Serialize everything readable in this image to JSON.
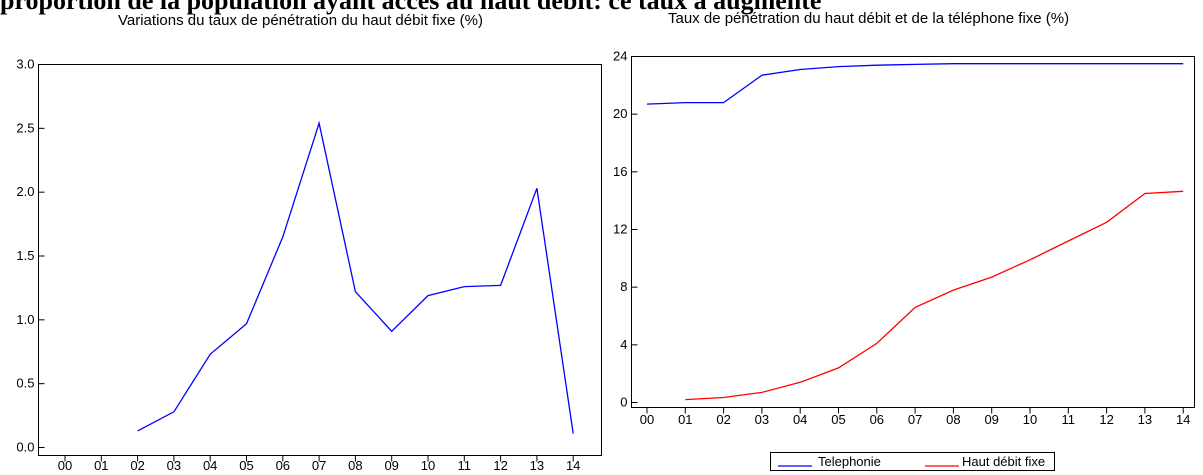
{
  "heading": "proportion de la population ayant accès au haut débit: ce taux a augmenté",
  "chart_data": [
    {
      "type": "line",
      "title": "Variations du taux de pénétration du haut débit fixe (%)",
      "x": [
        "00",
        "01",
        "02",
        "03",
        "04",
        "05",
        "06",
        "07",
        "08",
        "09",
        "10",
        "11",
        "12",
        "13",
        "14"
      ],
      "y_ticks": [
        "0.0",
        "0.5",
        "1.0",
        "1.5",
        "2.0",
        "2.5",
        "3.0"
      ],
      "ylim": [
        0,
        3.0
      ],
      "grid": false,
      "series": [
        {
          "color": "#0000ff",
          "values": [
            null,
            null,
            0.13,
            0.28,
            0.73,
            0.97,
            1.65,
            2.54,
            1.22,
            0.91,
            1.19,
            1.26,
            1.27,
            2.03,
            0.11
          ]
        }
      ]
    },
    {
      "type": "line",
      "title": "Taux de pénétration du haut débit et de la téléphone fixe (%)",
      "x": [
        "00",
        "01",
        "02",
        "03",
        "04",
        "05",
        "06",
        "07",
        "08",
        "09",
        "10",
        "11",
        "12",
        "13",
        "14"
      ],
      "y_ticks": [
        "0",
        "4",
        "8",
        "12",
        "16",
        "20",
        "24"
      ],
      "ylim": [
        0,
        24
      ],
      "grid": false,
      "legend": "bottom",
      "series": [
        {
          "name": "Telephonie",
          "color": "#0000ff",
          "values": [
            20.7,
            20.8,
            20.8,
            22.7,
            23.1,
            23.3,
            23.4,
            23.45,
            23.5,
            23.5,
            23.5,
            23.5,
            23.5,
            23.5,
            23.5
          ]
        },
        {
          "name": "Haut débit fixe",
          "color": "#ff0000",
          "values": [
            null,
            0.2,
            0.35,
            0.7,
            1.4,
            2.4,
            4.1,
            6.6,
            7.8,
            8.7,
            9.9,
            11.2,
            12.5,
            14.5,
            14.65
          ]
        }
      ]
    }
  ]
}
